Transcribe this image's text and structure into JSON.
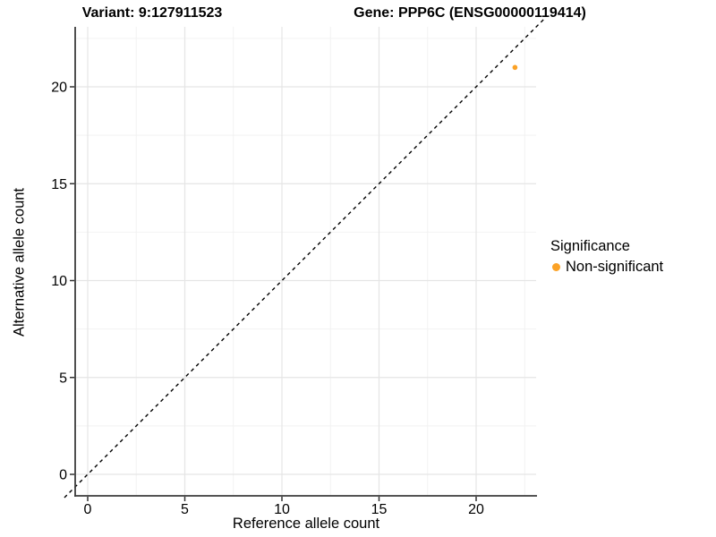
{
  "header": {
    "variant_title": "Variant: 9:127911523",
    "gene_title": "Gene: PPP6C (ENSG00000119414)"
  },
  "chart_data": {
    "type": "scatter",
    "titles": [
      "Variant: 9:127911523",
      "Gene: PPP6C (ENSG00000119414)"
    ],
    "xlabel": "Reference allele count",
    "ylabel": "Alternative allele count",
    "x_ticks": [
      0,
      5,
      10,
      15,
      20
    ],
    "y_ticks": [
      0,
      5,
      10,
      15,
      20
    ],
    "xlim": [
      -1.1,
      23.1
    ],
    "ylim": [
      -1.1,
      23.1
    ],
    "grid": "major+minor",
    "grid_major_color": "#E5E5E5",
    "grid_minor_color": "#F2F2F2",
    "background": "#FFFFFF",
    "identity_line": {
      "equation": "y = x",
      "style": "dashed",
      "color": "#000000"
    },
    "series": [
      {
        "name": "Non-significant",
        "color": "#FBA226",
        "points": [
          {
            "x": 22,
            "y": 21
          }
        ]
      }
    ],
    "legend": {
      "title": "Significance",
      "position": "right",
      "items": [
        {
          "label": "Non-significant",
          "color": "#FBA226"
        }
      ]
    }
  }
}
